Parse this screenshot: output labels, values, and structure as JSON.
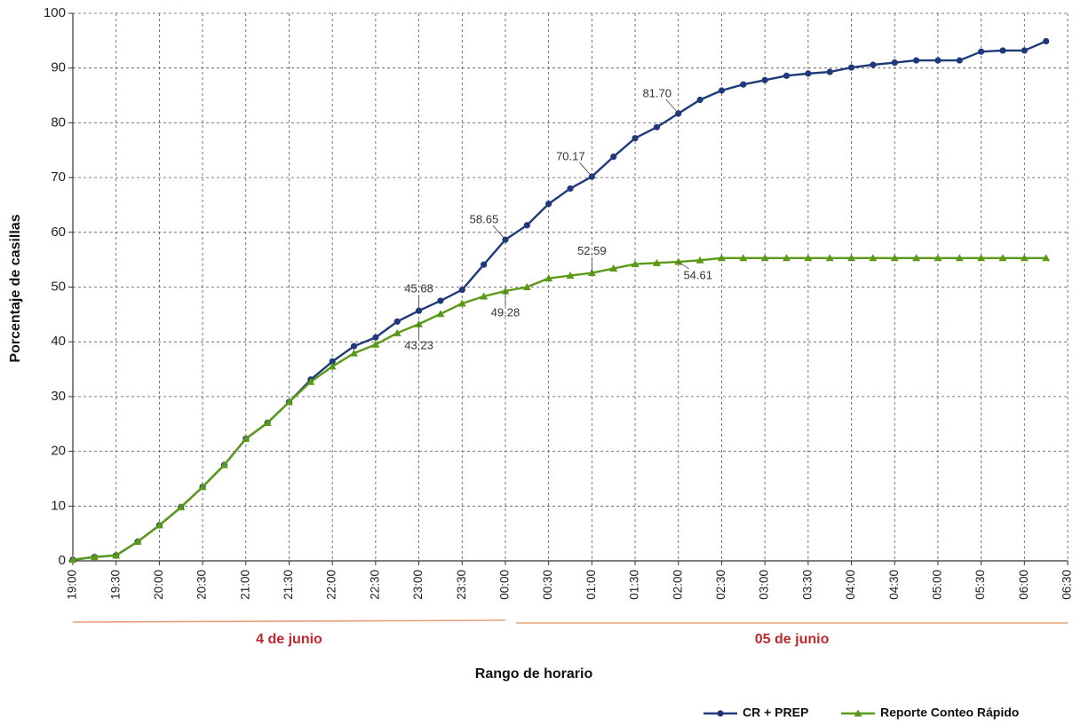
{
  "chart_data": {
    "type": "line",
    "ylabel": "Porcentaje de casillas",
    "xlabel": "Rango de horario",
    "ylim": [
      0,
      100
    ],
    "y_ticks": [
      0,
      10,
      20,
      30,
      40,
      50,
      60,
      70,
      80,
      90,
      100
    ],
    "x_ticks": [
      "19:00",
      "19:30",
      "20:00",
      "20:30",
      "21:00",
      "21:30",
      "22:00",
      "22:30",
      "23:00",
      "23:30",
      "00:00",
      "00:30",
      "01:00",
      "01:30",
      "02:00",
      "02:30",
      "03:00",
      "03:30",
      "04:00",
      "04:30",
      "05:00",
      "05:30",
      "06:00",
      "06:30"
    ],
    "x_tick_step": 2,
    "grid": true,
    "grid_style": "dashed",
    "legend_position": "bottom-right",
    "date_groups": [
      {
        "label": "4 de junio",
        "from_index": 0,
        "to_index": 20,
        "color": "#c0282d",
        "line_color": "#e8a07a"
      },
      {
        "label": "05 de junio",
        "from_index": 20.5,
        "to_index": 46,
        "color": "#c0282d",
        "line_color": "#e8a07a"
      }
    ],
    "series": [
      {
        "name": "CR + PREP",
        "color": "#1f3a7a",
        "marker": "circle",
        "values": [
          0.2,
          0.7,
          1.0,
          3.5,
          6.5,
          9.8,
          13.5,
          17.5,
          22.3,
          25.2,
          29.0,
          33.1,
          36.4,
          39.2,
          40.8,
          43.7,
          45.68,
          47.5,
          49.5,
          54.1,
          58.65,
          61.3,
          65.2,
          68.0,
          70.17,
          73.8,
          77.2,
          79.2,
          81.7,
          84.2,
          85.9,
          87.0,
          87.8,
          88.6,
          89.0,
          89.3,
          90.1,
          90.6,
          91.0,
          91.4,
          91.4,
          91.4,
          93.0,
          93.2,
          93.2,
          94.9
        ]
      },
      {
        "name": "Reporte Conteo Rápido",
        "color": "#5a9a18",
        "marker": "triangle",
        "values": [
          0.2,
          0.7,
          1.0,
          3.5,
          6.5,
          9.8,
          13.5,
          17.5,
          22.3,
          25.2,
          29.0,
          32.7,
          35.5,
          37.9,
          39.5,
          41.6,
          43.23,
          45.1,
          47.0,
          48.3,
          49.28,
          50.0,
          51.6,
          52.1,
          52.59,
          53.4,
          54.2,
          54.4,
          54.61,
          54.9,
          55.3,
          55.3,
          55.3,
          55.3,
          55.3,
          55.3,
          55.3,
          55.3,
          55.3,
          55.3,
          55.3,
          55.3,
          55.3,
          55.3,
          55.3,
          55.3
        ]
      }
    ],
    "annotations": [
      {
        "series": 0,
        "index": 16,
        "text": "45.68",
        "anchor": "above"
      },
      {
        "series": 0,
        "index": 20,
        "text": "58.65",
        "anchor": "above-left"
      },
      {
        "series": 0,
        "index": 24,
        "text": "70.17",
        "anchor": "above-left"
      },
      {
        "series": 0,
        "index": 28,
        "text": "81.70",
        "anchor": "above-left"
      },
      {
        "series": 1,
        "index": 16,
        "text": "43.23",
        "anchor": "below"
      },
      {
        "series": 1,
        "index": 20,
        "text": "49.28",
        "anchor": "below"
      },
      {
        "series": 1,
        "index": 24,
        "text": "52.59",
        "anchor": "above"
      },
      {
        "series": 1,
        "index": 28,
        "text": "54.61",
        "anchor": "below-right"
      }
    ]
  }
}
